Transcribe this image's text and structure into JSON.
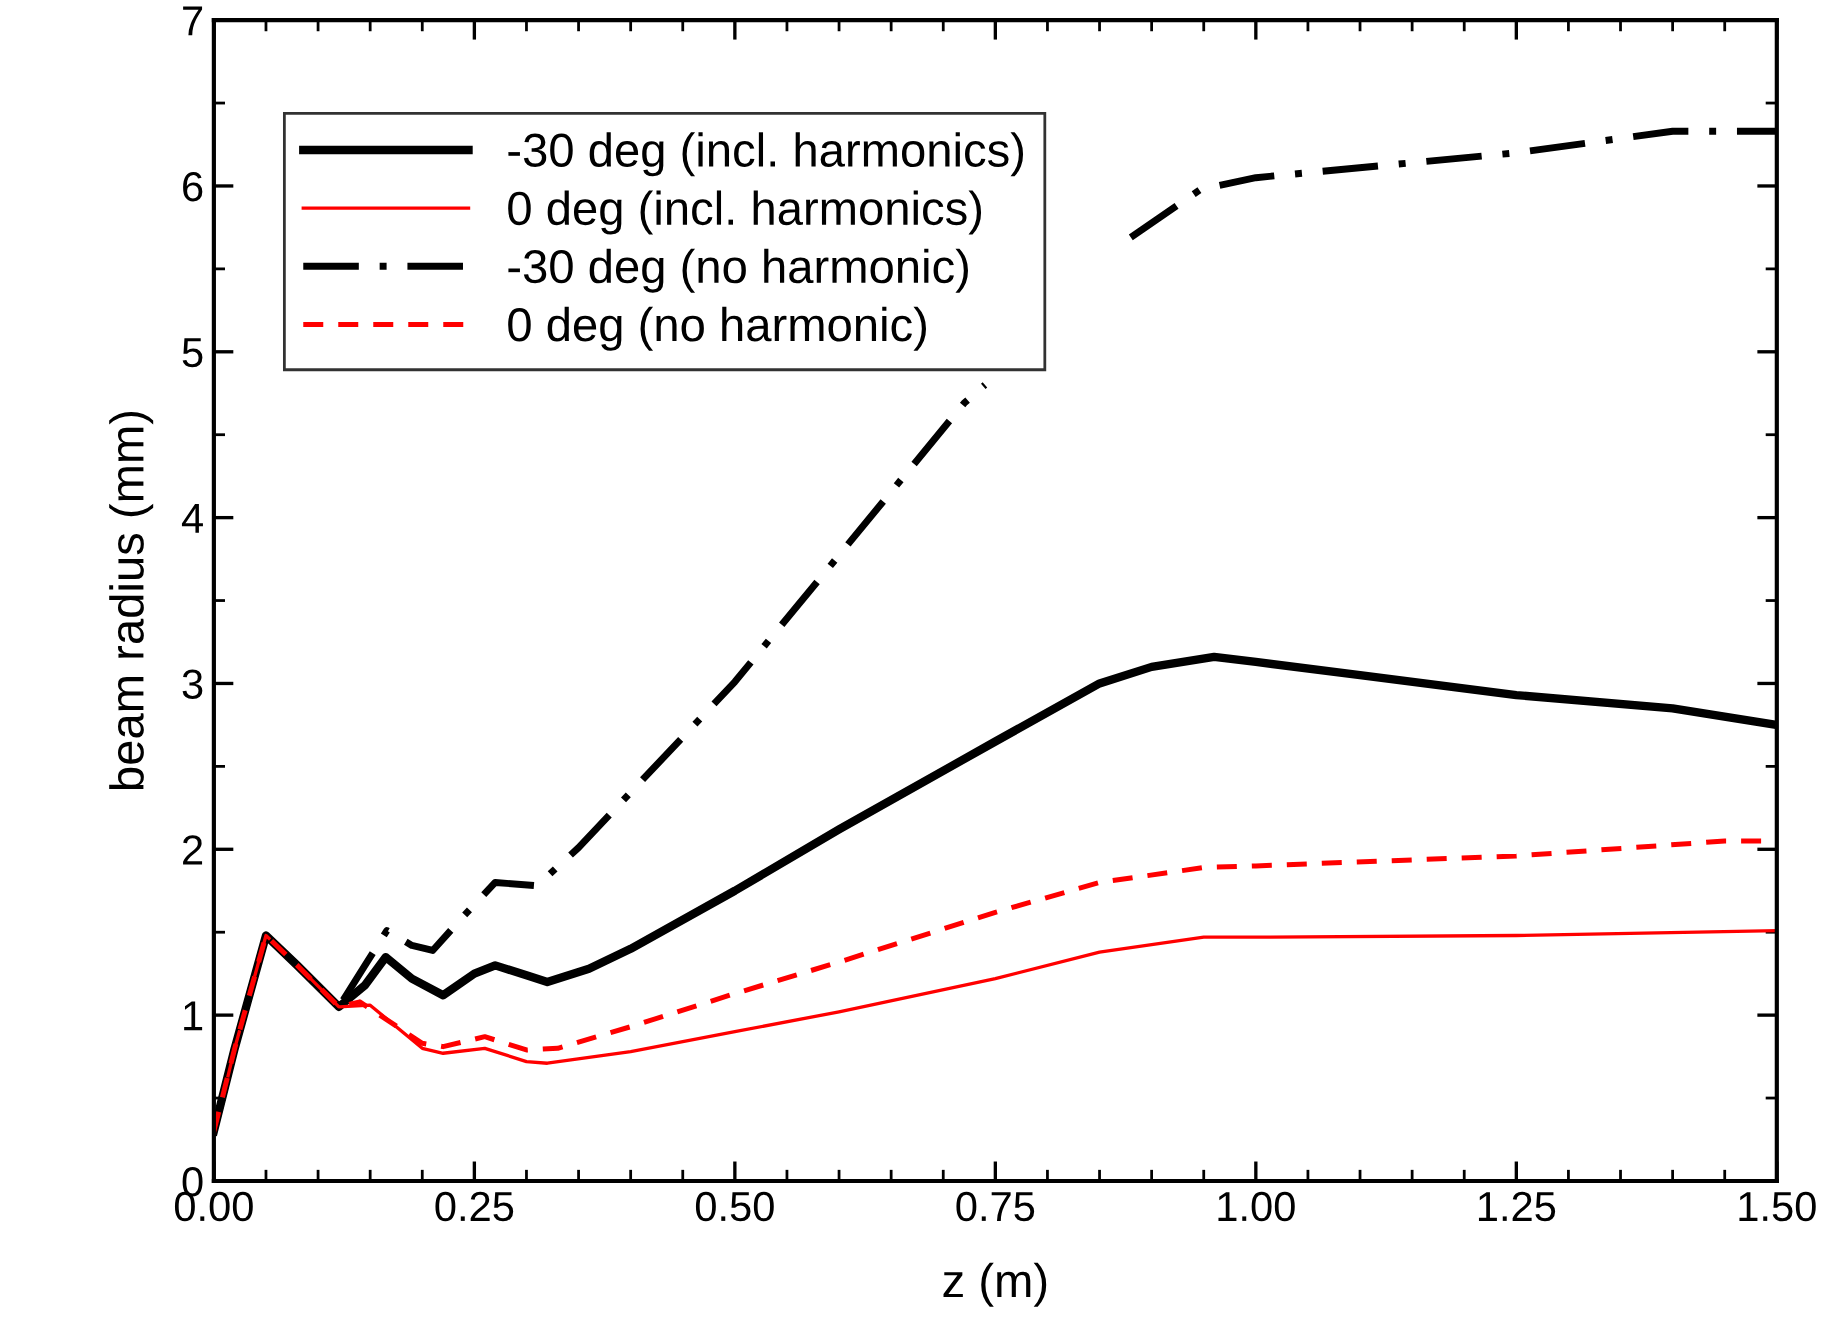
{
  "chart_data": {
    "type": "line",
    "xlabel": "z (m)",
    "ylabel": "beam radius (mm)",
    "xlim": [
      0,
      1.5
    ],
    "xticks": [
      {
        "value": 0,
        "label": "0.00"
      },
      {
        "value": 0.25,
        "label": "0.25"
      },
      {
        "value": 0.5,
        "label": "0.50"
      },
      {
        "value": 0.75,
        "label": "0.75"
      },
      {
        "value": 1,
        "label": "1.00"
      },
      {
        "value": 1.25,
        "label": "1.25"
      },
      {
        "value": 1.5,
        "label": "1.50"
      }
    ],
    "ylim": [
      0,
      7
    ],
    "yticks": [
      0,
      1,
      2,
      3,
      4,
      5,
      6,
      7
    ],
    "grid": false,
    "legend": "top left",
    "series": [
      {
        "name": "-30 deg (incl. harmonics)",
        "color": "#000000",
        "line_style": "solid",
        "x": [
          0,
          0.02,
          0.05,
          0.08,
          0.12,
          0.145,
          0.165,
          0.19,
          0.22,
          0.25,
          0.27,
          0.3,
          0.32,
          0.36,
          0.4,
          0.5,
          0.6,
          0.75,
          0.85,
          0.9,
          0.96,
          1.0,
          1.1,
          1.25,
          1.4,
          1.5
        ],
        "values": [
          0.3,
          0.8,
          1.48,
          1.3,
          1.05,
          1.18,
          1.35,
          1.22,
          1.12,
          1.25,
          1.3,
          1.24,
          1.2,
          1.28,
          1.4,
          1.75,
          2.12,
          2.65,
          3.0,
          3.1,
          3.16,
          3.13,
          3.05,
          2.93,
          2.85,
          2.75
        ]
      },
      {
        "name": "0 deg (incl. harmonics)",
        "color": "#ff0000",
        "line_style": "solid",
        "x": [
          0,
          0.02,
          0.05,
          0.08,
          0.12,
          0.15,
          0.2,
          0.22,
          0.26,
          0.3,
          0.32,
          0.4,
          0.5,
          0.6,
          0.75,
          0.85,
          0.95,
          1.0,
          1.25,
          1.5
        ],
        "values": [
          0.28,
          0.8,
          1.48,
          1.3,
          1.05,
          1.06,
          0.8,
          0.77,
          0.8,
          0.72,
          0.71,
          0.78,
          0.9,
          1.02,
          1.22,
          1.38,
          1.47,
          1.47,
          1.48,
          1.51
        ]
      },
      {
        "name": "-30 deg (no harmonic)",
        "color": "#000000",
        "line_style": "dashdot",
        "x": [
          0,
          0.02,
          0.05,
          0.08,
          0.12,
          0.145,
          0.166,
          0.19,
          0.21,
          0.24,
          0.27,
          0.31,
          0.35,
          0.5,
          0.72,
          0.74,
          0.82,
          0.88,
          0.947,
          1.0,
          1.25,
          1.4,
          1.5
        ],
        "values": [
          0.3,
          0.8,
          1.48,
          1.3,
          1.05,
          1.3,
          1.51,
          1.42,
          1.39,
          1.6,
          1.8,
          1.78,
          2.01,
          3.01,
          4.69,
          4.8,
          null,
          5.69,
          5.98,
          6.05,
          6.2,
          6.33,
          6.33
        ]
      },
      {
        "name": "0 deg (no harmonic)",
        "color": "#ff0000",
        "line_style": "dashed",
        "x": [
          0,
          0.02,
          0.05,
          0.08,
          0.12,
          0.14,
          0.2,
          0.22,
          0.26,
          0.3,
          0.33,
          0.4,
          0.5,
          0.6,
          0.75,
          0.85,
          0.95,
          1.0,
          1.25,
          1.45,
          1.5
        ],
        "values": [
          0.3,
          0.8,
          1.48,
          1.3,
          1.05,
          1.08,
          0.83,
          0.81,
          0.87,
          0.79,
          0.8,
          0.93,
          1.13,
          1.32,
          1.62,
          1.8,
          1.89,
          1.9,
          1.96,
          2.05,
          2.05
        ]
      }
    ]
  }
}
